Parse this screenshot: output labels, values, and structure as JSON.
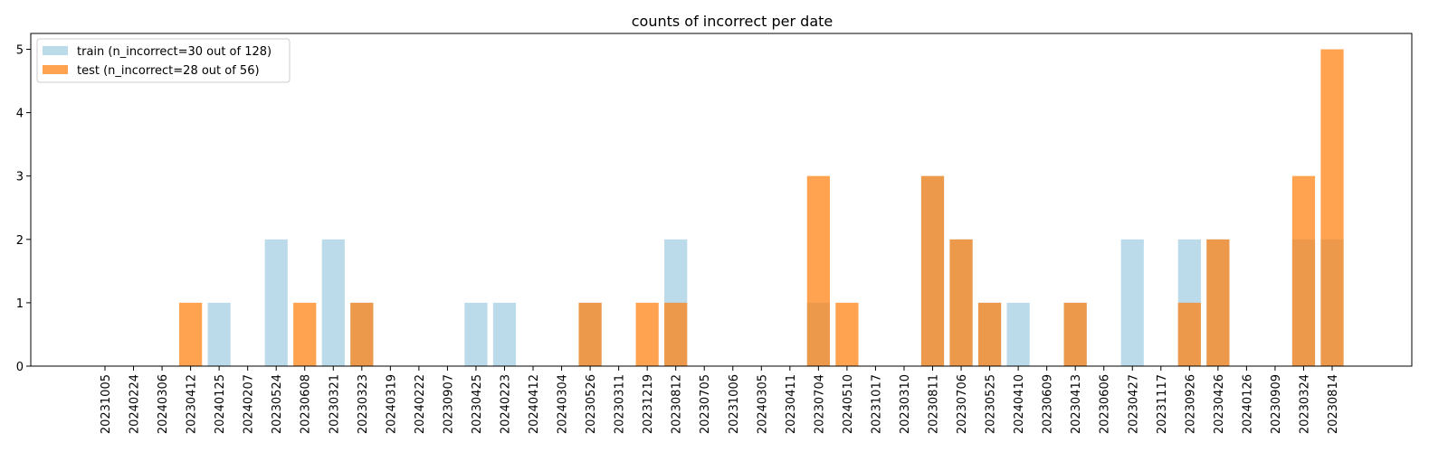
{
  "chart_data": {
    "type": "bar",
    "title": "counts of incorrect per date",
    "xlabel": "",
    "ylabel": "",
    "ylim": [
      0,
      5.25
    ],
    "yticks": [
      0,
      1,
      2,
      3,
      4,
      5
    ],
    "grid": false,
    "legend_position": "top-left",
    "categories": [
      "20231005",
      "20240224",
      "20240306",
      "20230412",
      "20240125",
      "20240207",
      "20230524",
      "20230608",
      "20230321",
      "20230323",
      "20240319",
      "20240222",
      "20230907",
      "20230425",
      "20240223",
      "20240412",
      "20240304",
      "20230526",
      "20230311",
      "20231219",
      "20230812",
      "20230705",
      "20231006",
      "20240305",
      "20230411",
      "20230704",
      "20240510",
      "20231017",
      "20230310",
      "20230811",
      "20230706",
      "20230525",
      "20240410",
      "20230609",
      "20230413",
      "20230606",
      "20230427",
      "20231117",
      "20230926",
      "20230426",
      "20240126",
      "20230909",
      "20230324",
      "20230814"
    ],
    "series": [
      {
        "name": "train (n_incorrect=30 out of 128)",
        "color": "#9ecae1",
        "opacity": 0.7,
        "values": [
          0,
          0,
          0,
          0,
          1,
          0,
          2,
          0,
          2,
          1,
          0,
          0,
          0,
          1,
          1,
          0,
          0,
          1,
          0,
          0,
          2,
          0,
          0,
          0,
          0,
          1,
          0,
          0,
          0,
          3,
          2,
          1,
          1,
          0,
          1,
          0,
          2,
          0,
          2,
          2,
          0,
          0,
          2,
          2
        ]
      },
      {
        "name": "test (n_incorrect=28 out of 56)",
        "color": "#ff7f0e",
        "opacity": 0.72,
        "values": [
          0,
          0,
          0,
          1,
          0,
          0,
          0,
          1,
          0,
          1,
          0,
          0,
          0,
          0,
          0,
          0,
          0,
          1,
          0,
          1,
          1,
          0,
          0,
          0,
          0,
          3,
          1,
          0,
          0,
          3,
          2,
          1,
          0,
          0,
          1,
          0,
          0,
          0,
          1,
          2,
          0,
          0,
          3,
          5
        ]
      }
    ]
  }
}
